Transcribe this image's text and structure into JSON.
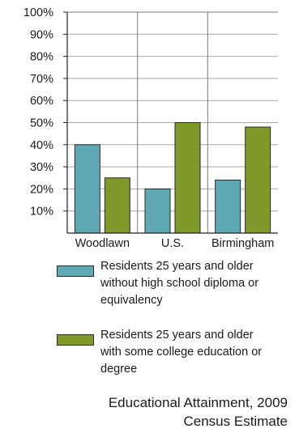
{
  "chart_data": {
    "type": "bar",
    "categories": [
      "Woodlawn",
      "U.S.",
      "Birmingham"
    ],
    "series": [
      {
        "name": "Residents 25 years and older without high school diploma or equivalency",
        "values": [
          40,
          20,
          24
        ],
        "color": "#5fa9b4"
      },
      {
        "name": "Residents 25 years and older with some college education or degree",
        "values": [
          25,
          50,
          48
        ],
        "color": "#7f9a2a"
      }
    ],
    "yticks": [
      "100%",
      "90%",
      "80%",
      "70%",
      "60%",
      "50%",
      "40%",
      "30%",
      "20%",
      "10%"
    ],
    "ylim": [
      0,
      100
    ],
    "xlabel": "",
    "ylabel": "",
    "grid": true,
    "title": "Educational Attainment, 2009",
    "subtitle": "Census Estimate"
  },
  "legend": {
    "items": [
      {
        "lines": [
          "Residents 25 years and older",
          "without high school diploma or",
          "equivalency"
        ],
        "color": "#5fa9b4"
      },
      {
        "lines": [
          "Residents 25 years and older",
          "with some college education or",
          "degree"
        ],
        "color": "#7f9a2a"
      }
    ]
  }
}
